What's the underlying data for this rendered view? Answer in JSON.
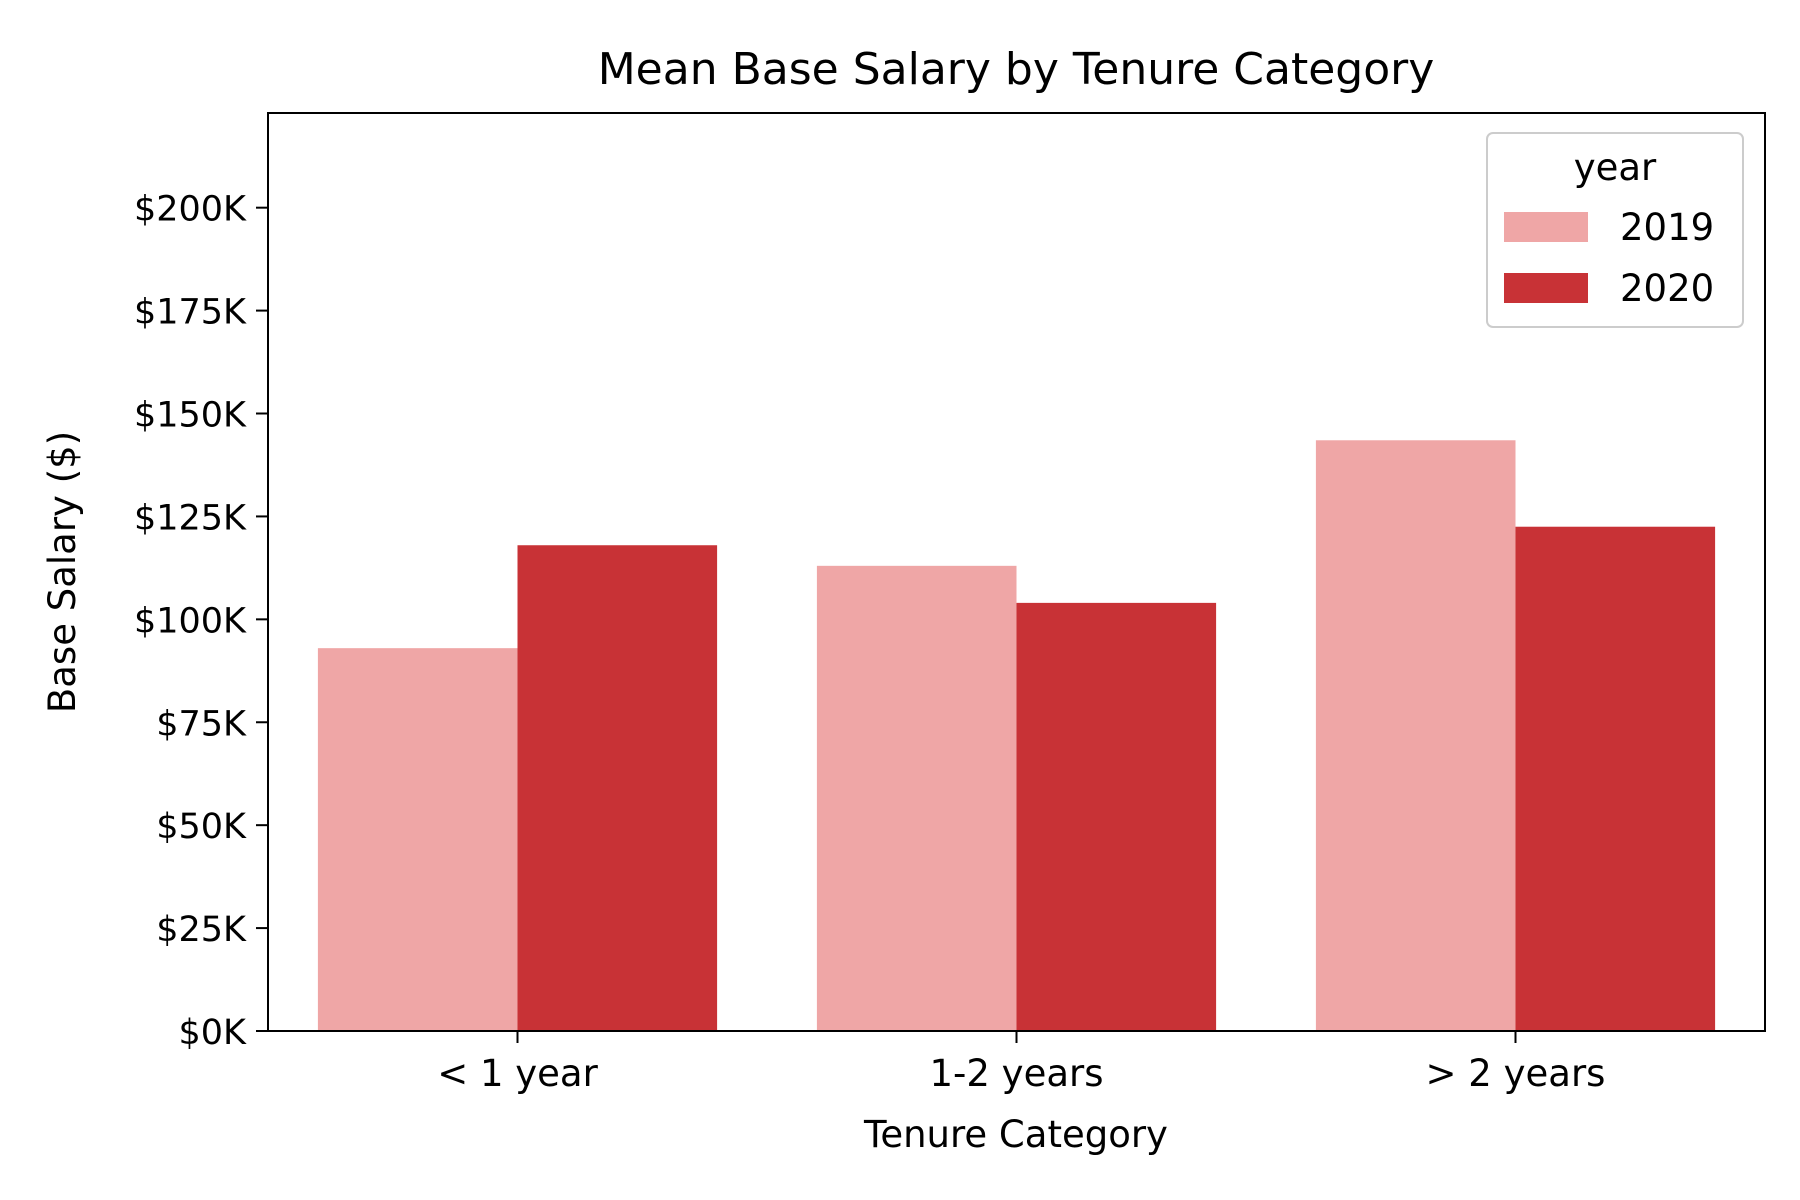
{
  "chart_data": {
    "type": "bar",
    "title": "Mean Base Salary by Tenure Category",
    "xlabel": "Tenure Category",
    "ylabel": "Base Salary ($)",
    "categories": [
      "< 1 year",
      "1-2 years",
      "> 2 years"
    ],
    "series": [
      {
        "name": "2019",
        "values": [
          93000,
          113000,
          143500
        ],
        "color": "#efa6a6"
      },
      {
        "name": "2020",
        "values": [
          118000,
          104000,
          122500
        ],
        "color": "#c83236"
      }
    ],
    "ylim": [
      0,
      223000
    ],
    "yticks": [
      0,
      25000,
      50000,
      75000,
      100000,
      125000,
      150000,
      175000,
      200000
    ],
    "ytick_labels": [
      "$0K",
      "$25K",
      "$50K",
      "$75K",
      "$100K",
      "$125K",
      "$150K",
      "$175K",
      "$200K"
    ],
    "grid": false,
    "legend": {
      "title": "year",
      "placement": "top-right"
    }
  }
}
